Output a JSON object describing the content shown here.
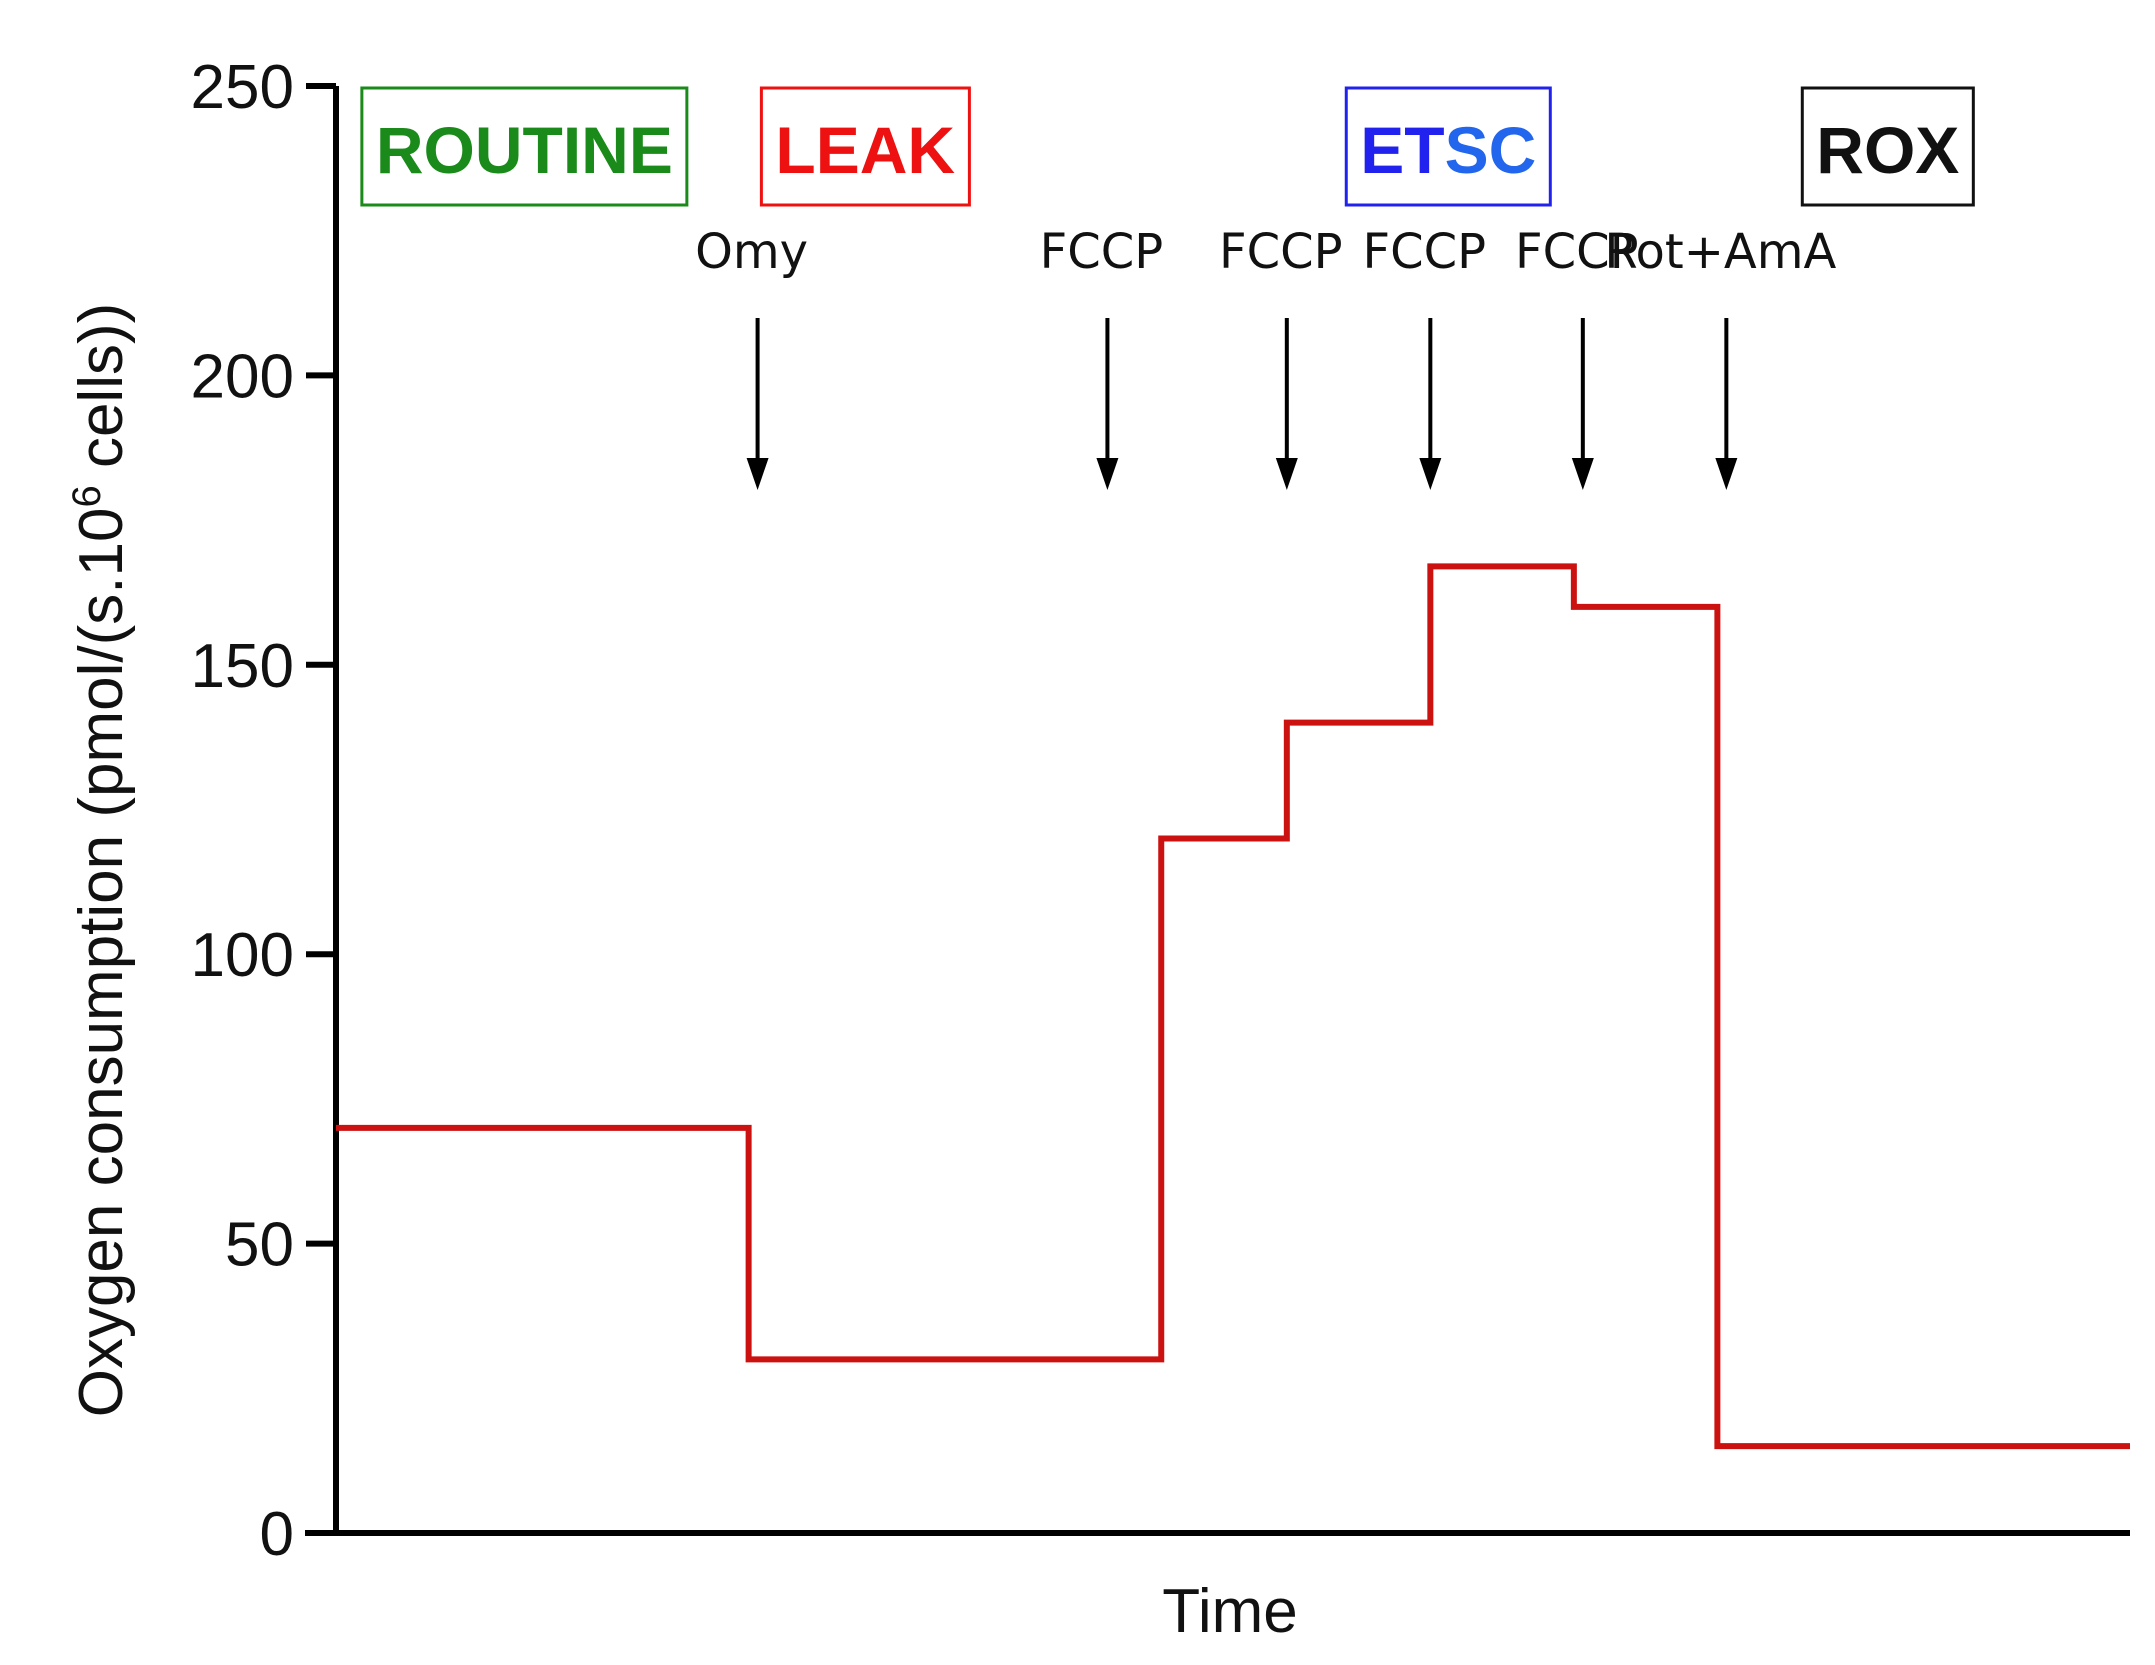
{
  "chart_data": {
    "type": "line",
    "title": "",
    "xlabel": "Time",
    "ylabel_main": "Oxygen consumption (pmol/(s.10",
    "ylabel_sup": "6",
    "ylabel_tail": " cells))",
    "ylim": [
      0,
      250
    ],
    "xlim": [
      0,
      100
    ],
    "yticks": [
      "0",
      "50",
      "100",
      "150",
      "200",
      "250"
    ],
    "ytick_values": [
      0,
      50,
      100,
      150,
      200,
      250
    ],
    "grid": false,
    "legend": "none",
    "series": [
      {
        "step": "post",
        "color": "#cc1111",
        "x": [
          0,
          23,
          46,
          53,
          61,
          69,
          77,
          100
        ],
        "y": [
          70,
          30,
          120,
          140,
          167,
          160,
          15,
          15
        ]
      }
    ],
    "states": [
      {
        "label": "ROUTINE",
        "color": "#1a8a1a",
        "x": 10.5
      },
      {
        "label": "LEAK",
        "color": "#ee1111",
        "x": 29.5
      },
      {
        "label": "ETSC",
        "segments": [
          {
            "text": "ET",
            "color": "#2222ee"
          },
          {
            "text": "SC",
            "color": "#2266ee"
          }
        ],
        "color": "#2222ee",
        "x": 62
      },
      {
        "label": "ROX",
        "color": "#111111",
        "x": 86.5
      }
    ],
    "injections": [
      {
        "label": "Omy",
        "x": 23.5
      },
      {
        "label": "FCCP",
        "x": 43
      },
      {
        "label": "FCCP",
        "x": 53
      },
      {
        "label": "FCCP",
        "x": 61
      },
      {
        "label": "FCCP",
        "x": 69.5
      },
      {
        "label": "Rot+AmA",
        "x": 77.5
      }
    ]
  }
}
